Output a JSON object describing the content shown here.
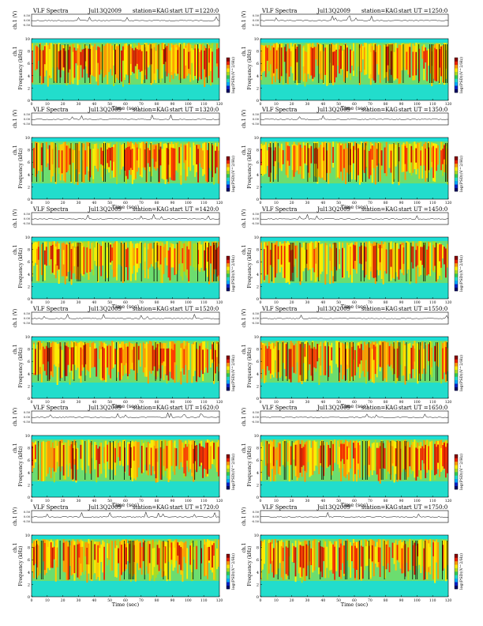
{
  "colors": {
    "background": "#ffffff",
    "noise_band": "#19e0d8",
    "colorbar": [
      "#000066",
      "#0022cc",
      "#00aaff",
      "#22ddcc",
      "#33cc55",
      "#aadd22",
      "#ffee00",
      "#ff9900",
      "#ee2200",
      "#880000"
    ]
  },
  "chart_data": [
    {
      "type": "heatmap",
      "title": "VLF Spectra",
      "date": "Jul13Q2009",
      "station": "station=KAG",
      "start": "start  UT  =1220:0",
      "ch_label": "ch.1 (V)",
      "ch_ticks": [
        "0.50",
        "0.00",
        "-0.50"
      ],
      "ylabel": "Frequency  (kHz)",
      "ylabel_prefix": "ch.1",
      "yticks": [
        "0",
        "2",
        "4",
        "6",
        "8",
        "10"
      ],
      "ylim": [
        0,
        10
      ],
      "xlabel": "Time  (sec)",
      "xticks": [
        "0",
        "10",
        "20",
        "30",
        "40",
        "50",
        "60",
        "70",
        "80",
        "90",
        "100",
        "110",
        "120"
      ],
      "xlim": [
        0,
        120
      ],
      "cbar_label": "log(PSD)(V^2/Hz)"
    },
    {
      "type": "heatmap",
      "title": "VLF Spectra",
      "date": "Jul13Q2009",
      "station": "station=KAG",
      "start": "start  UT  =1250:0",
      "ch_label": "ch.1 (V)",
      "ch_ticks": [
        "0.50",
        "0.00",
        "-0.50"
      ],
      "ylabel": "Frequency  (kHz)",
      "ylabel_prefix": "ch.1",
      "yticks": [
        "0",
        "2",
        "4",
        "6",
        "8",
        "10"
      ],
      "ylim": [
        0,
        10
      ],
      "xlabel": "Time  (sec)",
      "xticks": [
        "0",
        "10",
        "20",
        "30",
        "40",
        "50",
        "60",
        "70",
        "80",
        "90",
        "100",
        "110",
        "120"
      ],
      "xlim": [
        0,
        120
      ],
      "cbar_label": "log(PSD)(V^2/Hz)"
    },
    {
      "type": "heatmap",
      "title": "VLF Spectra",
      "date": "Jul13Q2009",
      "station": "station=KAG",
      "start": "start  UT  =1320:0",
      "ch_label": "ch.1 (V)",
      "ch_ticks": [
        "0.50",
        "0.00",
        "-0.50"
      ],
      "ylabel": "Frequency  (kHz)",
      "ylabel_prefix": "ch.1",
      "yticks": [
        "0",
        "2",
        "4",
        "6",
        "8",
        "10"
      ],
      "ylim": [
        0,
        10
      ],
      "xlabel": "Time  (sec)",
      "xticks": [
        "0",
        "10",
        "20",
        "30",
        "40",
        "50",
        "60",
        "70",
        "80",
        "90",
        "100",
        "110",
        "120"
      ],
      "xlim": [
        0,
        120
      ],
      "cbar_label": "log(PSD)(V^2/Hz)"
    },
    {
      "type": "heatmap",
      "title": "VLF Spectra",
      "date": "Jul13Q2009",
      "station": "station=KAG",
      "start": "start  UT  =1350:0",
      "ch_label": "ch.1 (V)",
      "ch_ticks": [
        "0.50",
        "0.00",
        "-0.50"
      ],
      "ylabel": "Frequency  (kHz)",
      "ylabel_prefix": "ch.1",
      "yticks": [
        "0",
        "2",
        "4",
        "6",
        "8",
        "10"
      ],
      "ylim": [
        0,
        10
      ],
      "xlabel": "Time  (sec)",
      "xticks": [
        "0",
        "10",
        "20",
        "30",
        "40",
        "50",
        "60",
        "70",
        "80",
        "90",
        "100",
        "110",
        "120"
      ],
      "xlim": [
        0,
        120
      ],
      "cbar_label": "log(PSD)(V^2/Hz)"
    },
    {
      "type": "heatmap",
      "title": "VLF Spectra",
      "date": "Jul13Q2009",
      "station": "station=KAG",
      "start": "start  UT  =1420:0",
      "ch_label": "ch.1 (V)",
      "ch_ticks": [
        "0.50",
        "0.00",
        "-0.50"
      ],
      "ylabel": "Frequency  (kHz)",
      "ylabel_prefix": "ch.1",
      "yticks": [
        "0",
        "2",
        "4",
        "6",
        "8",
        "10"
      ],
      "ylim": [
        0,
        10
      ],
      "xlabel": "Time  (sec)",
      "xticks": [
        "0",
        "10",
        "20",
        "30",
        "40",
        "50",
        "60",
        "70",
        "80",
        "90",
        "100",
        "110",
        "120"
      ],
      "xlim": [
        0,
        120
      ],
      "cbar_label": "log(PSD)(V^2/Hz)"
    },
    {
      "type": "heatmap",
      "title": "VLF Spectra",
      "date": "Jul13Q2009",
      "station": "station=KAG",
      "start": "start  UT  =1450:0",
      "ch_label": "ch.1 (V)",
      "ch_ticks": [
        "0.50",
        "0.00",
        "-0.50"
      ],
      "ylabel": "Frequency  (kHz)",
      "ylabel_prefix": "ch.1",
      "yticks": [
        "0",
        "2",
        "4",
        "6",
        "8",
        "10"
      ],
      "ylim": [
        0,
        10
      ],
      "xlabel": "Time  (sec)",
      "xticks": [
        "0",
        "10",
        "20",
        "30",
        "40",
        "50",
        "60",
        "70",
        "80",
        "90",
        "100",
        "110",
        "120"
      ],
      "xlim": [
        0,
        120
      ],
      "cbar_label": "log(PSD)(V^2/Hz)"
    },
    {
      "type": "heatmap",
      "title": "VLF Spectra",
      "date": "Jul13Q2009",
      "station": "station=KAG",
      "start": "start  UT  =1520:0",
      "ch_label": "ch.1 (V)",
      "ch_ticks": [
        "0.50",
        "0.00",
        "-0.50"
      ],
      "ylabel": "Frequency  (kHz)",
      "ylabel_prefix": "ch.1",
      "yticks": [
        "0",
        "2",
        "4",
        "6",
        "8",
        "10"
      ],
      "ylim": [
        0,
        10
      ],
      "xlabel": "Time  (sec)",
      "xticks": [
        "0",
        "10",
        "20",
        "30",
        "40",
        "50",
        "60",
        "70",
        "80",
        "90",
        "100",
        "110",
        "120"
      ],
      "xlim": [
        0,
        120
      ],
      "cbar_label": "log(PSD)(V^2/Hz)"
    },
    {
      "type": "heatmap",
      "title": "VLF Spectra",
      "date": "Jul13Q2009",
      "station": "station=KAG",
      "start": "start  UT  =1550:0",
      "ch_label": "ch.1 (V)",
      "ch_ticks": [
        "0.50",
        "0.00",
        "-0.50"
      ],
      "ylabel": "Frequency  (kHz)",
      "ylabel_prefix": "ch.1",
      "yticks": [
        "0",
        "2",
        "4",
        "6",
        "8",
        "10"
      ],
      "ylim": [
        0,
        10
      ],
      "xlabel": "Time  (sec)",
      "xticks": [
        "0",
        "10",
        "20",
        "30",
        "40",
        "50",
        "60",
        "70",
        "80",
        "90",
        "100",
        "110",
        "120"
      ],
      "xlim": [
        0,
        120
      ],
      "cbar_label": "log(PSD)(V^2/Hz)"
    },
    {
      "type": "heatmap",
      "title": "VLF Spectra",
      "date": "Jul13Q2009",
      "station": "station=KAG",
      "start": "start  UT  =1620:0",
      "ch_label": "ch.1 (V)",
      "ch_ticks": [
        "0.50",
        "0.00",
        "-0.50"
      ],
      "ylabel": "Frequency  (kHz)",
      "ylabel_prefix": "ch.1",
      "yticks": [
        "0",
        "2",
        "4",
        "6",
        "8",
        "10"
      ],
      "ylim": [
        0,
        10
      ],
      "xlabel": "Time  (sec)",
      "xticks": [
        "0",
        "10",
        "20",
        "30",
        "40",
        "50",
        "60",
        "70",
        "80",
        "90",
        "100",
        "110",
        "120"
      ],
      "xlim": [
        0,
        120
      ],
      "cbar_label": "log(PSD)(V^2/Hz)"
    },
    {
      "type": "heatmap",
      "title": "VLF Spectra",
      "date": "Jul13Q2009",
      "station": "station=KAG",
      "start": "start  UT  =1650:0",
      "ch_label": "ch.1 (V)",
      "ch_ticks": [
        "0.50",
        "0.00",
        "-0.50"
      ],
      "ylabel": "Frequency  (kHz)",
      "ylabel_prefix": "ch.1",
      "yticks": [
        "0",
        "2",
        "4",
        "6",
        "8",
        "10"
      ],
      "ylim": [
        0,
        10
      ],
      "xlabel": "Time  (sec)",
      "xticks": [
        "0",
        "10",
        "20",
        "30",
        "40",
        "50",
        "60",
        "70",
        "80",
        "90",
        "100",
        "110",
        "120"
      ],
      "xlim": [
        0,
        120
      ],
      "cbar_label": "log(PSD)(V^2/Hz)"
    },
    {
      "type": "heatmap",
      "title": "VLF Spectra",
      "date": "Jul13Q2009",
      "station": "station=KAG",
      "start": "start  UT  =1720:0",
      "ch_label": "ch.1 (V)",
      "ch_ticks": [
        "0.50",
        "0.00",
        "-0.50"
      ],
      "ylabel": "Frequency  (kHz)",
      "ylabel_prefix": "ch.1",
      "yticks": [
        "0",
        "2",
        "4",
        "6",
        "8",
        "10"
      ],
      "ylim": [
        0,
        10
      ],
      "xlabel": "Time  (sec)",
      "xticks": [
        "0",
        "10",
        "20",
        "30",
        "40",
        "50",
        "60",
        "70",
        "80",
        "90",
        "100",
        "110",
        "120"
      ],
      "xlim": [
        0,
        120
      ],
      "cbar_label": "log(PSD)(V^2/Hz)"
    },
    {
      "type": "heatmap",
      "title": "VLF Spectra",
      "date": "Jul13Q2009",
      "station": "station=KAG",
      "start": "start  UT  =1750:0",
      "ch_label": "ch.1 (V)",
      "ch_ticks": [
        "0.50",
        "0.00",
        "-0.50"
      ],
      "ylabel": "Frequency  (kHz)",
      "ylabel_prefix": "ch.1",
      "yticks": [
        "0",
        "2",
        "4",
        "6",
        "8",
        "10"
      ],
      "ylim": [
        0,
        10
      ],
      "xlabel": "Time  (sec)",
      "xticks": [
        "0",
        "10",
        "20",
        "30",
        "40",
        "50",
        "60",
        "70",
        "80",
        "90",
        "100",
        "110",
        "120"
      ],
      "xlim": [
        0,
        120
      ],
      "cbar_label": "log(PSD)(V^2/Hz)"
    }
  ]
}
